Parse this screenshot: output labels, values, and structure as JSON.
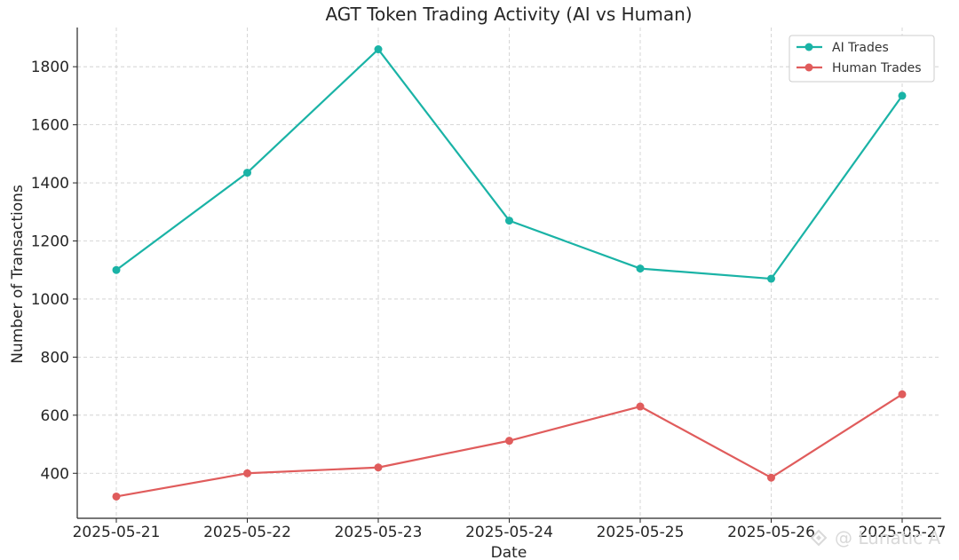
{
  "chart_data": {
    "type": "line",
    "title": "AGT Token Trading Activity (AI vs Human)",
    "xlabel": "Date",
    "ylabel": "Number of Transactions",
    "categories": [
      "2025-05-21",
      "2025-05-22",
      "2025-05-23",
      "2025-05-24",
      "2025-05-25",
      "2025-05-26",
      "2025-05-27"
    ],
    "series": [
      {
        "name": "AI Trades",
        "color": "#1ab3a6",
        "values": [
          1100,
          1435,
          1860,
          1270,
          1105,
          1070,
          1700
        ]
      },
      {
        "name": "Human Trades",
        "color": "#e05c5c",
        "values": [
          320,
          400,
          420,
          512,
          630,
          385,
          672
        ]
      }
    ],
    "ylim": [
      245,
      1935
    ],
    "yticks": [
      400,
      600,
      800,
      1000,
      1200,
      1400,
      1600,
      1800
    ],
    "grid": true,
    "grid_style": "dashed",
    "legend_position": "top-right"
  },
  "watermark": {
    "text": "@ Lunatic A",
    "icon": "logo-icon"
  }
}
